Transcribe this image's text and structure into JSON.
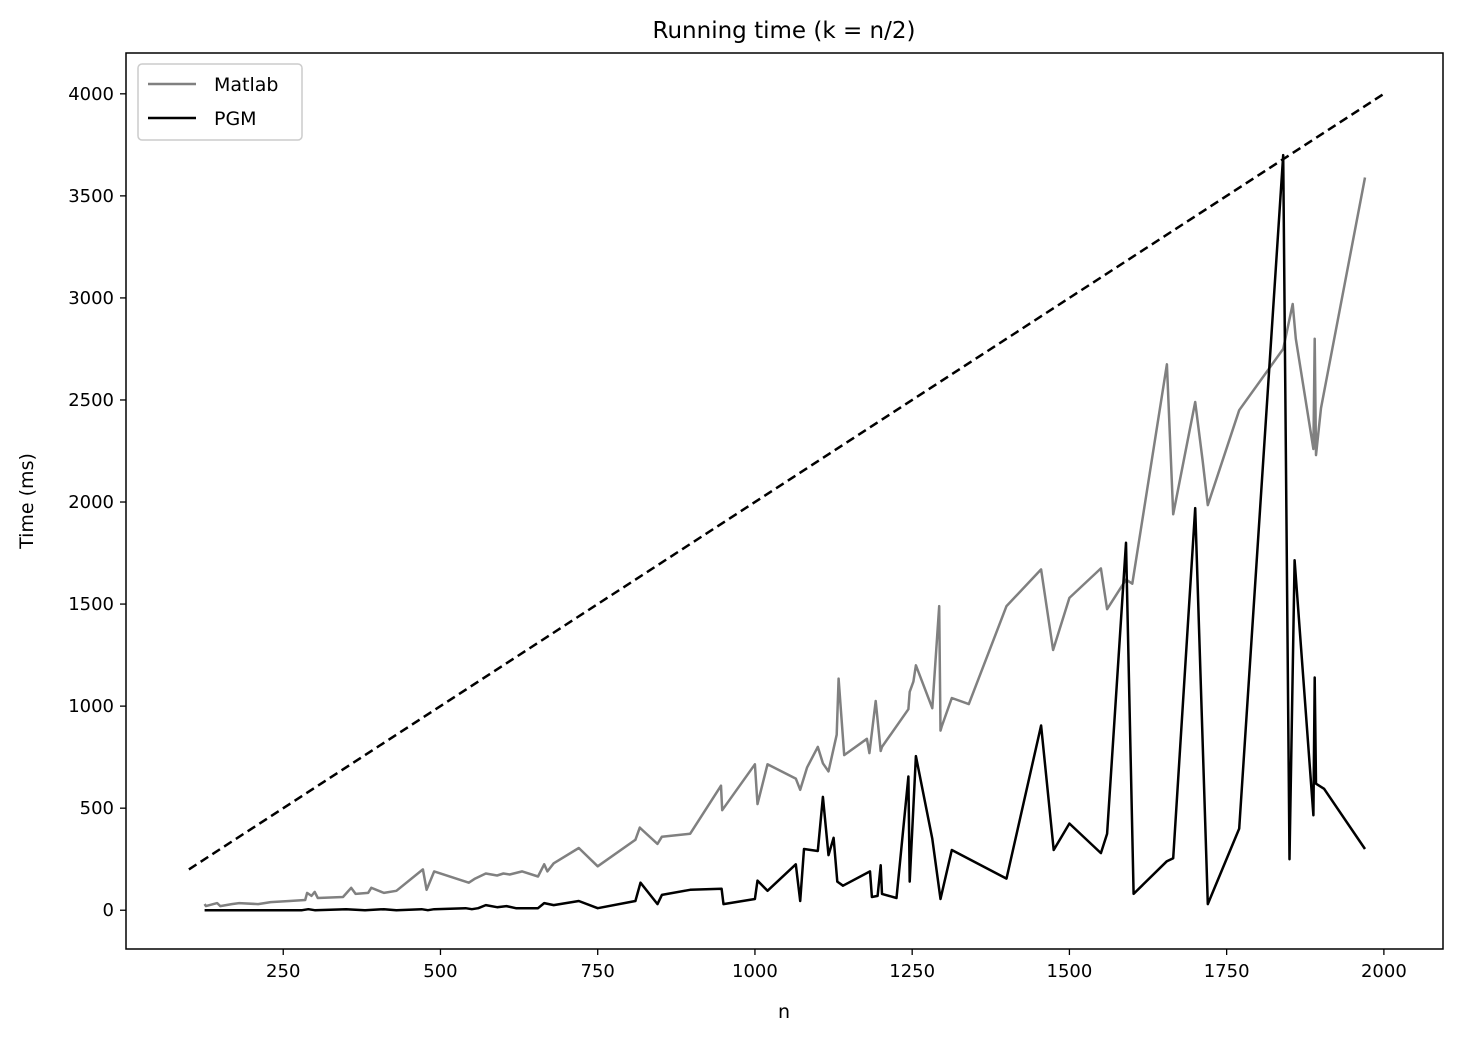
{
  "chart_data": {
    "type": "line",
    "title": "Running time (k = n/2)",
    "xlabel": "n",
    "ylabel": "Time (ms)",
    "xlim": [
      0,
      2094
    ],
    "ylim": [
      -190,
      4200
    ],
    "xticks": [
      250,
      500,
      750,
      1000,
      1250,
      1500,
      1750,
      2000
    ],
    "yticks": [
      0,
      500,
      1000,
      1500,
      2000,
      2500,
      3000,
      3500,
      4000
    ],
    "grid": false,
    "legend_position": "top-left",
    "series": [
      {
        "name": "Matlab",
        "color": "#808080",
        "style": "solid",
        "x": [
          125,
          127,
          145,
          150,
          168,
          180,
          210,
          230,
          260,
          285,
          288,
          295,
          300,
          305,
          345,
          358,
          365,
          385,
          390,
          410,
          430,
          472,
          478,
          490,
          545,
          555,
          572,
          590,
          600,
          610,
          630,
          655,
          665,
          670,
          680,
          720,
          750,
          810,
          817,
          822,
          845,
          852,
          897,
          946,
          948,
          1000,
          1004,
          1020,
          1065,
          1072,
          1083,
          1100,
          1108,
          1117,
          1130,
          1133,
          1142,
          1178,
          1182,
          1192,
          1200,
          1202,
          1244,
          1246,
          1252,
          1256,
          1282,
          1293,
          1295,
          1297,
          1313,
          1340,
          1400,
          1455,
          1474,
          1500,
          1550,
          1560,
          1590,
          1600,
          1655,
          1665,
          1700,
          1712,
          1720,
          1770,
          1840,
          1855,
          1860,
          1888,
          1890,
          1892,
          1900,
          1970
        ],
        "y": [
          30,
          20,
          35,
          20,
          30,
          35,
          30,
          40,
          45,
          50,
          85,
          70,
          90,
          60,
          65,
          110,
          80,
          85,
          110,
          85,
          95,
          200,
          100,
          190,
          135,
          155,
          180,
          170,
          180,
          175,
          190,
          165,
          225,
          190,
          230,
          305,
          215,
          345,
          405,
          390,
          325,
          360,
          375,
          610,
          490,
          715,
          520,
          715,
          645,
          590,
          700,
          800,
          720,
          680,
          860,
          1135,
          760,
          840,
          770,
          1025,
          780,
          800,
          985,
          1070,
          1120,
          1200,
          990,
          1490,
          880,
          900,
          1040,
          1010,
          1490,
          1670,
          1275,
          1530,
          1675,
          1475,
          1620,
          1600,
          2675,
          1940,
          2490,
          2200,
          1985,
          2450,
          2750,
          2970,
          2800,
          2260,
          2800,
          2230,
          2460,
          3590
        ]
      },
      {
        "name": "PGM",
        "color": "#000000",
        "style": "solid",
        "x": [
          125,
          280,
          290,
          300,
          350,
          380,
          410,
          430,
          470,
          480,
          490,
          540,
          550,
          560,
          572,
          590,
          605,
          620,
          630,
          655,
          665,
          680,
          720,
          750,
          810,
          818,
          845,
          852,
          897,
          947,
          950,
          1000,
          1004,
          1020,
          1065,
          1072,
          1078,
          1100,
          1108,
          1117,
          1125,
          1131,
          1140,
          1183,
          1186,
          1195,
          1200,
          1202,
          1225,
          1244,
          1246,
          1256,
          1282,
          1295,
          1313,
          1400,
          1455,
          1475,
          1500,
          1550,
          1560,
          1590,
          1602,
          1655,
          1665,
          1700,
          1720,
          1770,
          1840,
          1850,
          1858,
          1888,
          1890,
          1892,
          1905,
          1970
        ],
        "y": [
          0,
          0,
          5,
          0,
          5,
          0,
          5,
          0,
          5,
          0,
          5,
          10,
          5,
          10,
          25,
          15,
          20,
          10,
          10,
          10,
          35,
          25,
          45,
          10,
          45,
          135,
          30,
          75,
          100,
          105,
          30,
          55,
          145,
          95,
          225,
          45,
          300,
          290,
          555,
          270,
          355,
          140,
          120,
          190,
          65,
          70,
          220,
          80,
          60,
          655,
          140,
          755,
          350,
          55,
          295,
          155,
          905,
          295,
          425,
          280,
          375,
          1800,
          80,
          240,
          255,
          1970,
          30,
          400,
          3700,
          250,
          1715,
          465,
          1140,
          620,
          595,
          300
        ]
      },
      {
        "name": "",
        "color": "#000000",
        "style": "dashed",
        "x": [
          100,
          2000
        ],
        "y": [
          200,
          4000
        ]
      }
    ]
  }
}
